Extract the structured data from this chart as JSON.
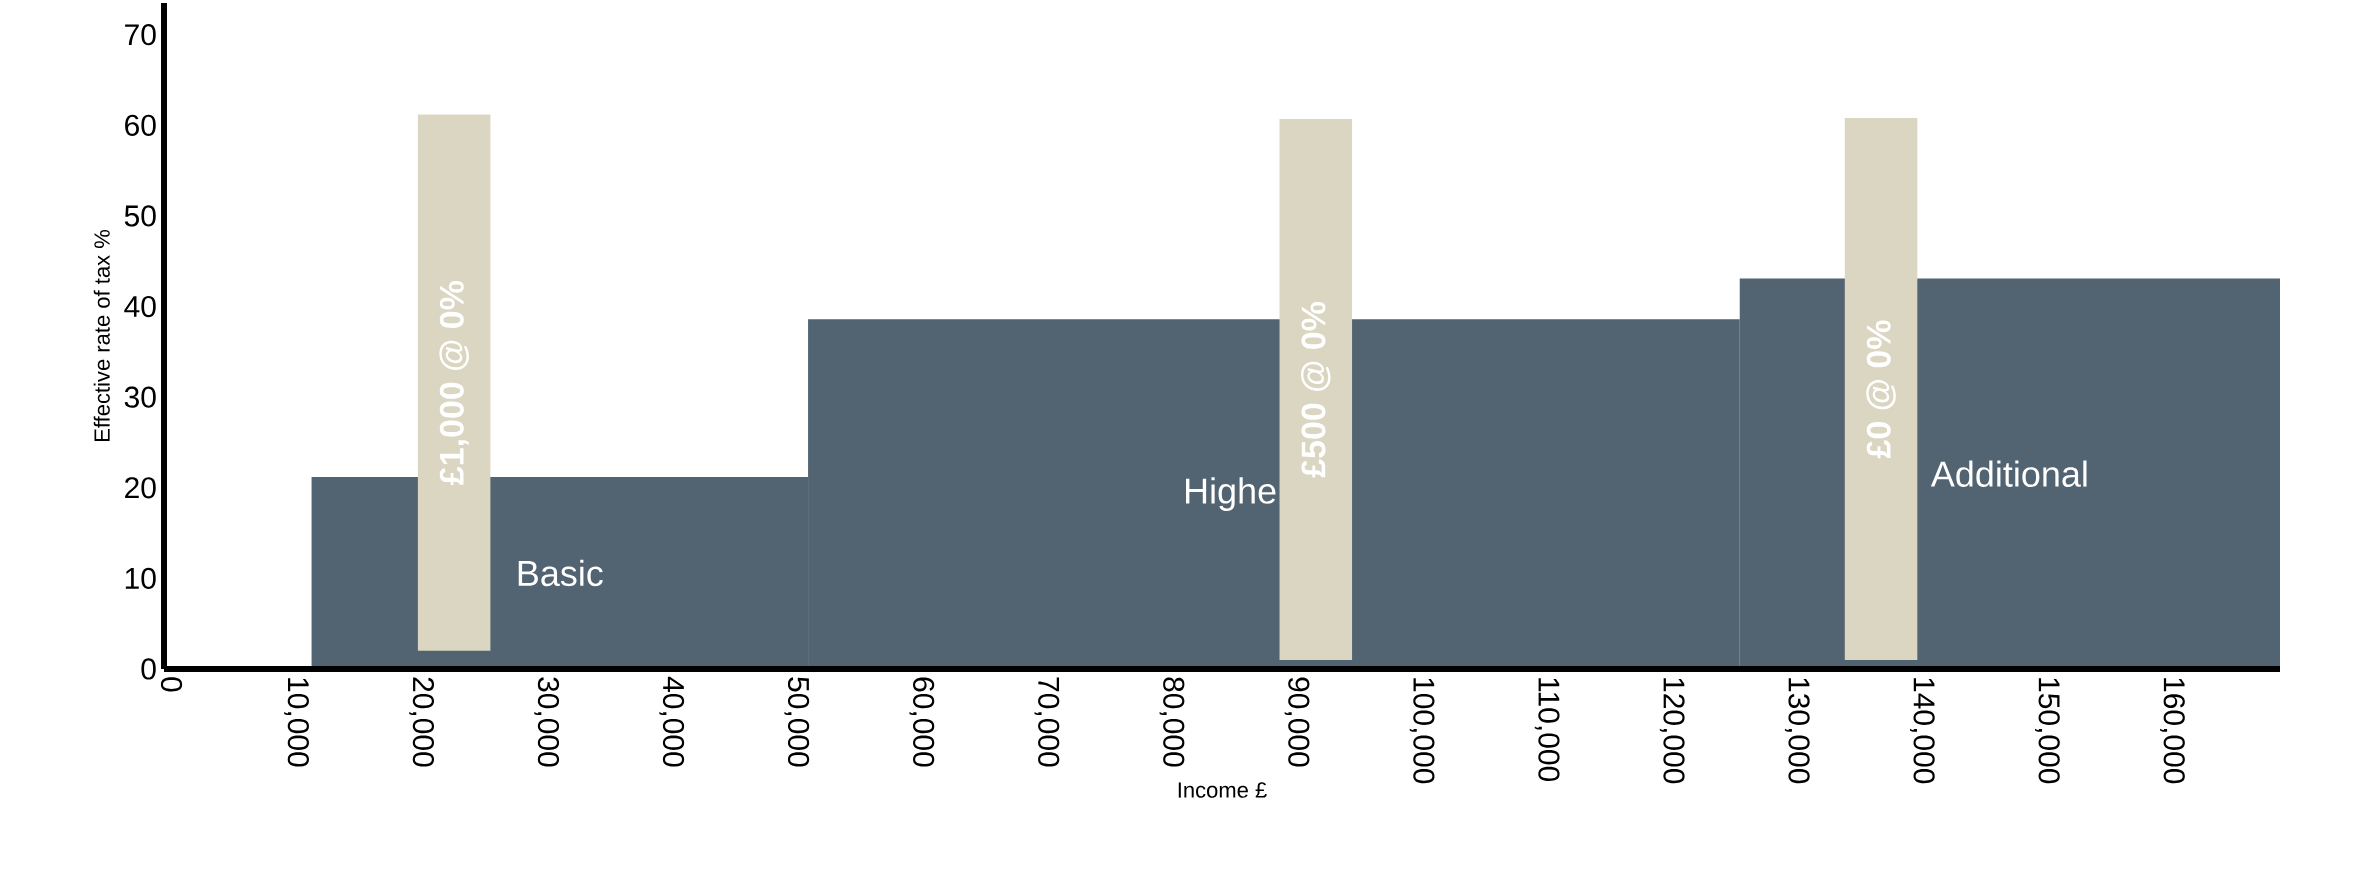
{
  "chart_data": {
    "type": "histogram",
    "xlabel": "Income £",
    "ylabel": "Effective rate of tax %",
    "bins": [
      11200,
      50900,
      125400,
      168600
    ],
    "values": [
      21.2,
      38.6,
      43.1
    ],
    "color": "#526371",
    "series": [
      {
        "type": "bar",
        "name": "£1,000 @ 0%",
        "color": "#dbd6c2",
        "x": [
          22600
        ],
        "base": [
          2
        ],
        "values": [
          59.2
        ]
      },
      {
        "type": "bar",
        "name": "£500 @ 0%",
        "color": "#dbd6c2",
        "x": [
          91500
        ],
        "base": [
          1
        ],
        "values": [
          59.7
        ]
      },
      {
        "type": "bar",
        "name": "£0 @ 0%",
        "color": "#dbd6c2",
        "x": [
          136700
        ],
        "base": [
          1
        ],
        "values": [
          59.8
        ]
      }
    ],
    "annotations": [
      "Basic",
      "Highe",
      "Additional"
    ],
    "xlim": [
      -600,
      168600
    ],
    "ylim": [
      0,
      73.5
    ],
    "xticks": [
      0,
      {
        "value": 10000,
        "label": "10,000"
      },
      {
        "value": 20000,
        "label": "20,000"
      },
      {
        "value": 30000,
        "label": "30,000"
      },
      {
        "value": 40000,
        "label": "40,000"
      },
      {
        "value": 50000,
        "label": "50,000"
      },
      {
        "value": 60000,
        "label": "60,000"
      },
      {
        "value": 70000,
        "label": "70,000"
      },
      {
        "value": 80000,
        "label": "80,000"
      },
      {
        "value": 90000,
        "label": "90,000"
      },
      {
        "value": 100000,
        "label": "100,000"
      },
      {
        "value": 110000,
        "label": "110,000"
      },
      {
        "value": 120000,
        "label": "120,000"
      },
      {
        "value": 130000,
        "label": "130,000"
      },
      {
        "value": 140000,
        "label": "140,000"
      },
      {
        "value": 150000,
        "label": "150,000"
      },
      {
        "value": 160000,
        "label": "160,000"
      }
    ],
    "yticks": [
      0,
      10,
      20,
      30,
      40,
      50,
      60,
      70
    ]
  }
}
